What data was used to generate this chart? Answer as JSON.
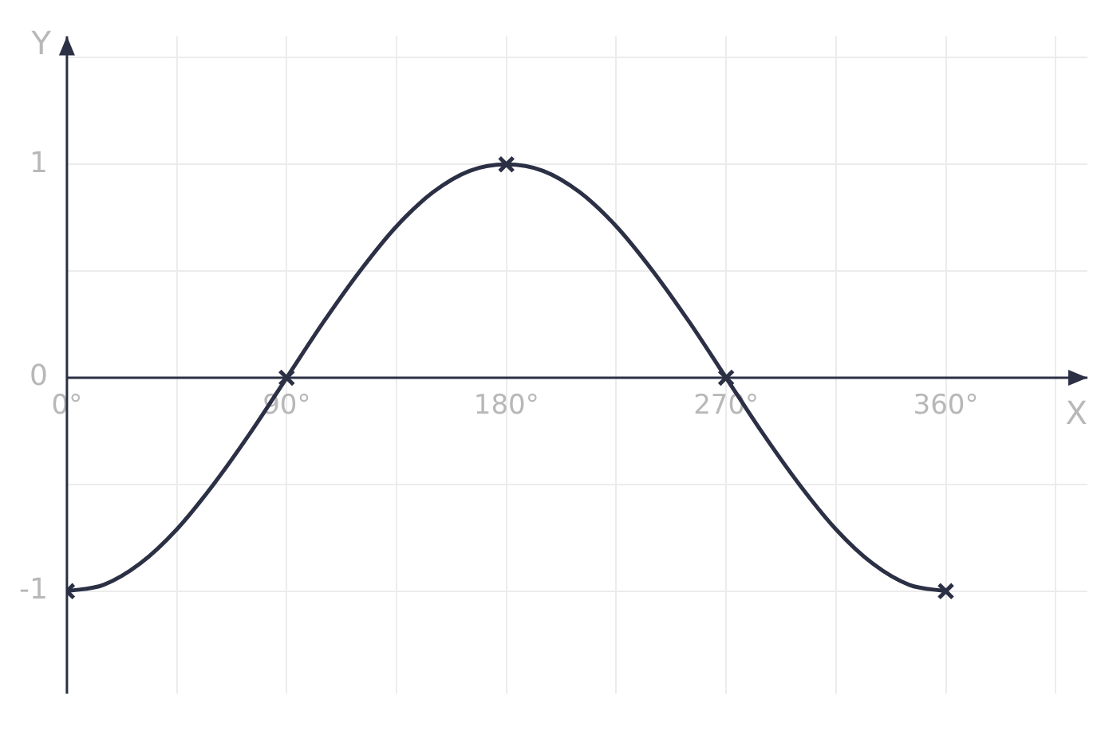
{
  "chart_data": {
    "type": "line",
    "xlabel": "X",
    "ylabel": "Y",
    "xlim": [
      0,
      418
    ],
    "ylim": [
      -1.48,
      1.6
    ],
    "xticks": [
      {
        "value": 0,
        "label": "0°"
      },
      {
        "value": 45,
        "label": null
      },
      {
        "value": 90,
        "label": "90°"
      },
      {
        "value": 135,
        "label": null
      },
      {
        "value": 180,
        "label": "180°"
      },
      {
        "value": 225,
        "label": null
      },
      {
        "value": 270,
        "label": "270°"
      },
      {
        "value": 315,
        "label": null
      },
      {
        "value": 360,
        "label": "360°"
      },
      {
        "value": 405,
        "label": null
      }
    ],
    "yticks": [
      {
        "value": -1,
        "label": "-1"
      },
      {
        "value": -0.5,
        "label": null
      },
      {
        "value": 0,
        "label": "0"
      },
      {
        "value": 0.5,
        "label": null
      },
      {
        "value": 1,
        "label": "1"
      },
      {
        "value": 1.5,
        "label": null
      }
    ],
    "grid": true,
    "series": [
      {
        "type": "line",
        "color": "#2b3045",
        "marker": "none",
        "line_style": "solid",
        "x": [
          0,
          15,
          30,
          45,
          60,
          75,
          90,
          105,
          120,
          135,
          150,
          165,
          180,
          195,
          210,
          225,
          240,
          255,
          270,
          285,
          300,
          315,
          330,
          345,
          360
        ],
        "values": [
          -1,
          -0.97,
          -0.87,
          -0.71,
          -0.5,
          -0.26,
          0,
          0.26,
          0.5,
          0.71,
          0.87,
          0.97,
          1,
          0.97,
          0.87,
          0.71,
          0.5,
          0.26,
          0,
          -0.26,
          -0.5,
          -0.71,
          -0.87,
          -0.97,
          -1
        ]
      },
      {
        "type": "scatter",
        "color": "#2b3045",
        "marker": "cross",
        "x": [
          0,
          90,
          180,
          270,
          360
        ],
        "values": [
          -1,
          0,
          1,
          0,
          -1
        ]
      }
    ]
  }
}
